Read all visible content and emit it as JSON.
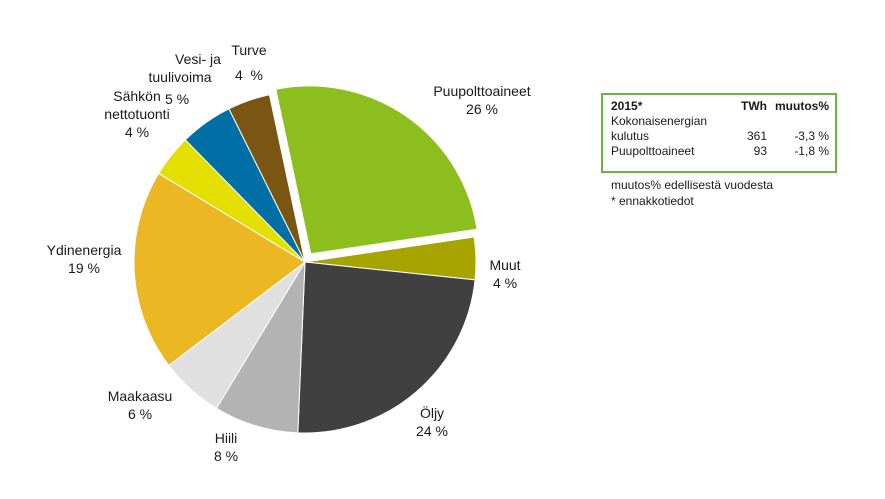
{
  "chart_data": {
    "type": "pie",
    "title": "",
    "slices": [
      {
        "label": "Puupolttoaineet",
        "value_text": "26 %",
        "value": 26,
        "color": "#8cbf1e",
        "exploded": true
      },
      {
        "label": "Muut",
        "value_text": "4 %",
        "value": 4,
        "color": "#a7a400"
      },
      {
        "label": "Öljy",
        "value_text": "24 %",
        "value": 24,
        "color": "#404040"
      },
      {
        "label": "Hiili",
        "value_text": "8 %",
        "value": 8,
        "color": "#b3b3b3"
      },
      {
        "label": "Maakaasu",
        "value_text": "6 %",
        "value": 6,
        "color": "#e0e0e0"
      },
      {
        "label": "Ydinenergia",
        "value_text": "19 %",
        "value": 19,
        "color": "#ebb723"
      },
      {
        "label": "Sähkön nettotuonti",
        "value_text": "4 %",
        "value": 4,
        "color": "#e3e000"
      },
      {
        "label": "Vesi- ja tuulivoima",
        "value_text": "5 %",
        "value": 5,
        "color": "#006fa6"
      },
      {
        "label": "Turve",
        "value_text": "4  %",
        "value": 4,
        "color": "#7b5512"
      }
    ]
  },
  "info_box": {
    "headers": [
      "2015*",
      "TWh",
      "muutos%"
    ],
    "rows": [
      {
        "label_line1": "Kokonaisenergian",
        "label_line2": "kulutus",
        "twh": "361",
        "change": "-3,3 %"
      },
      {
        "label_line1": "Puupolttoaineet",
        "twh": "93",
        "change": "-1,8 %"
      }
    ],
    "border_color": "#6cb33f"
  },
  "footnotes": [
    "muutos% edellisestä vuodesta",
    "* ennakkotiedot"
  ]
}
